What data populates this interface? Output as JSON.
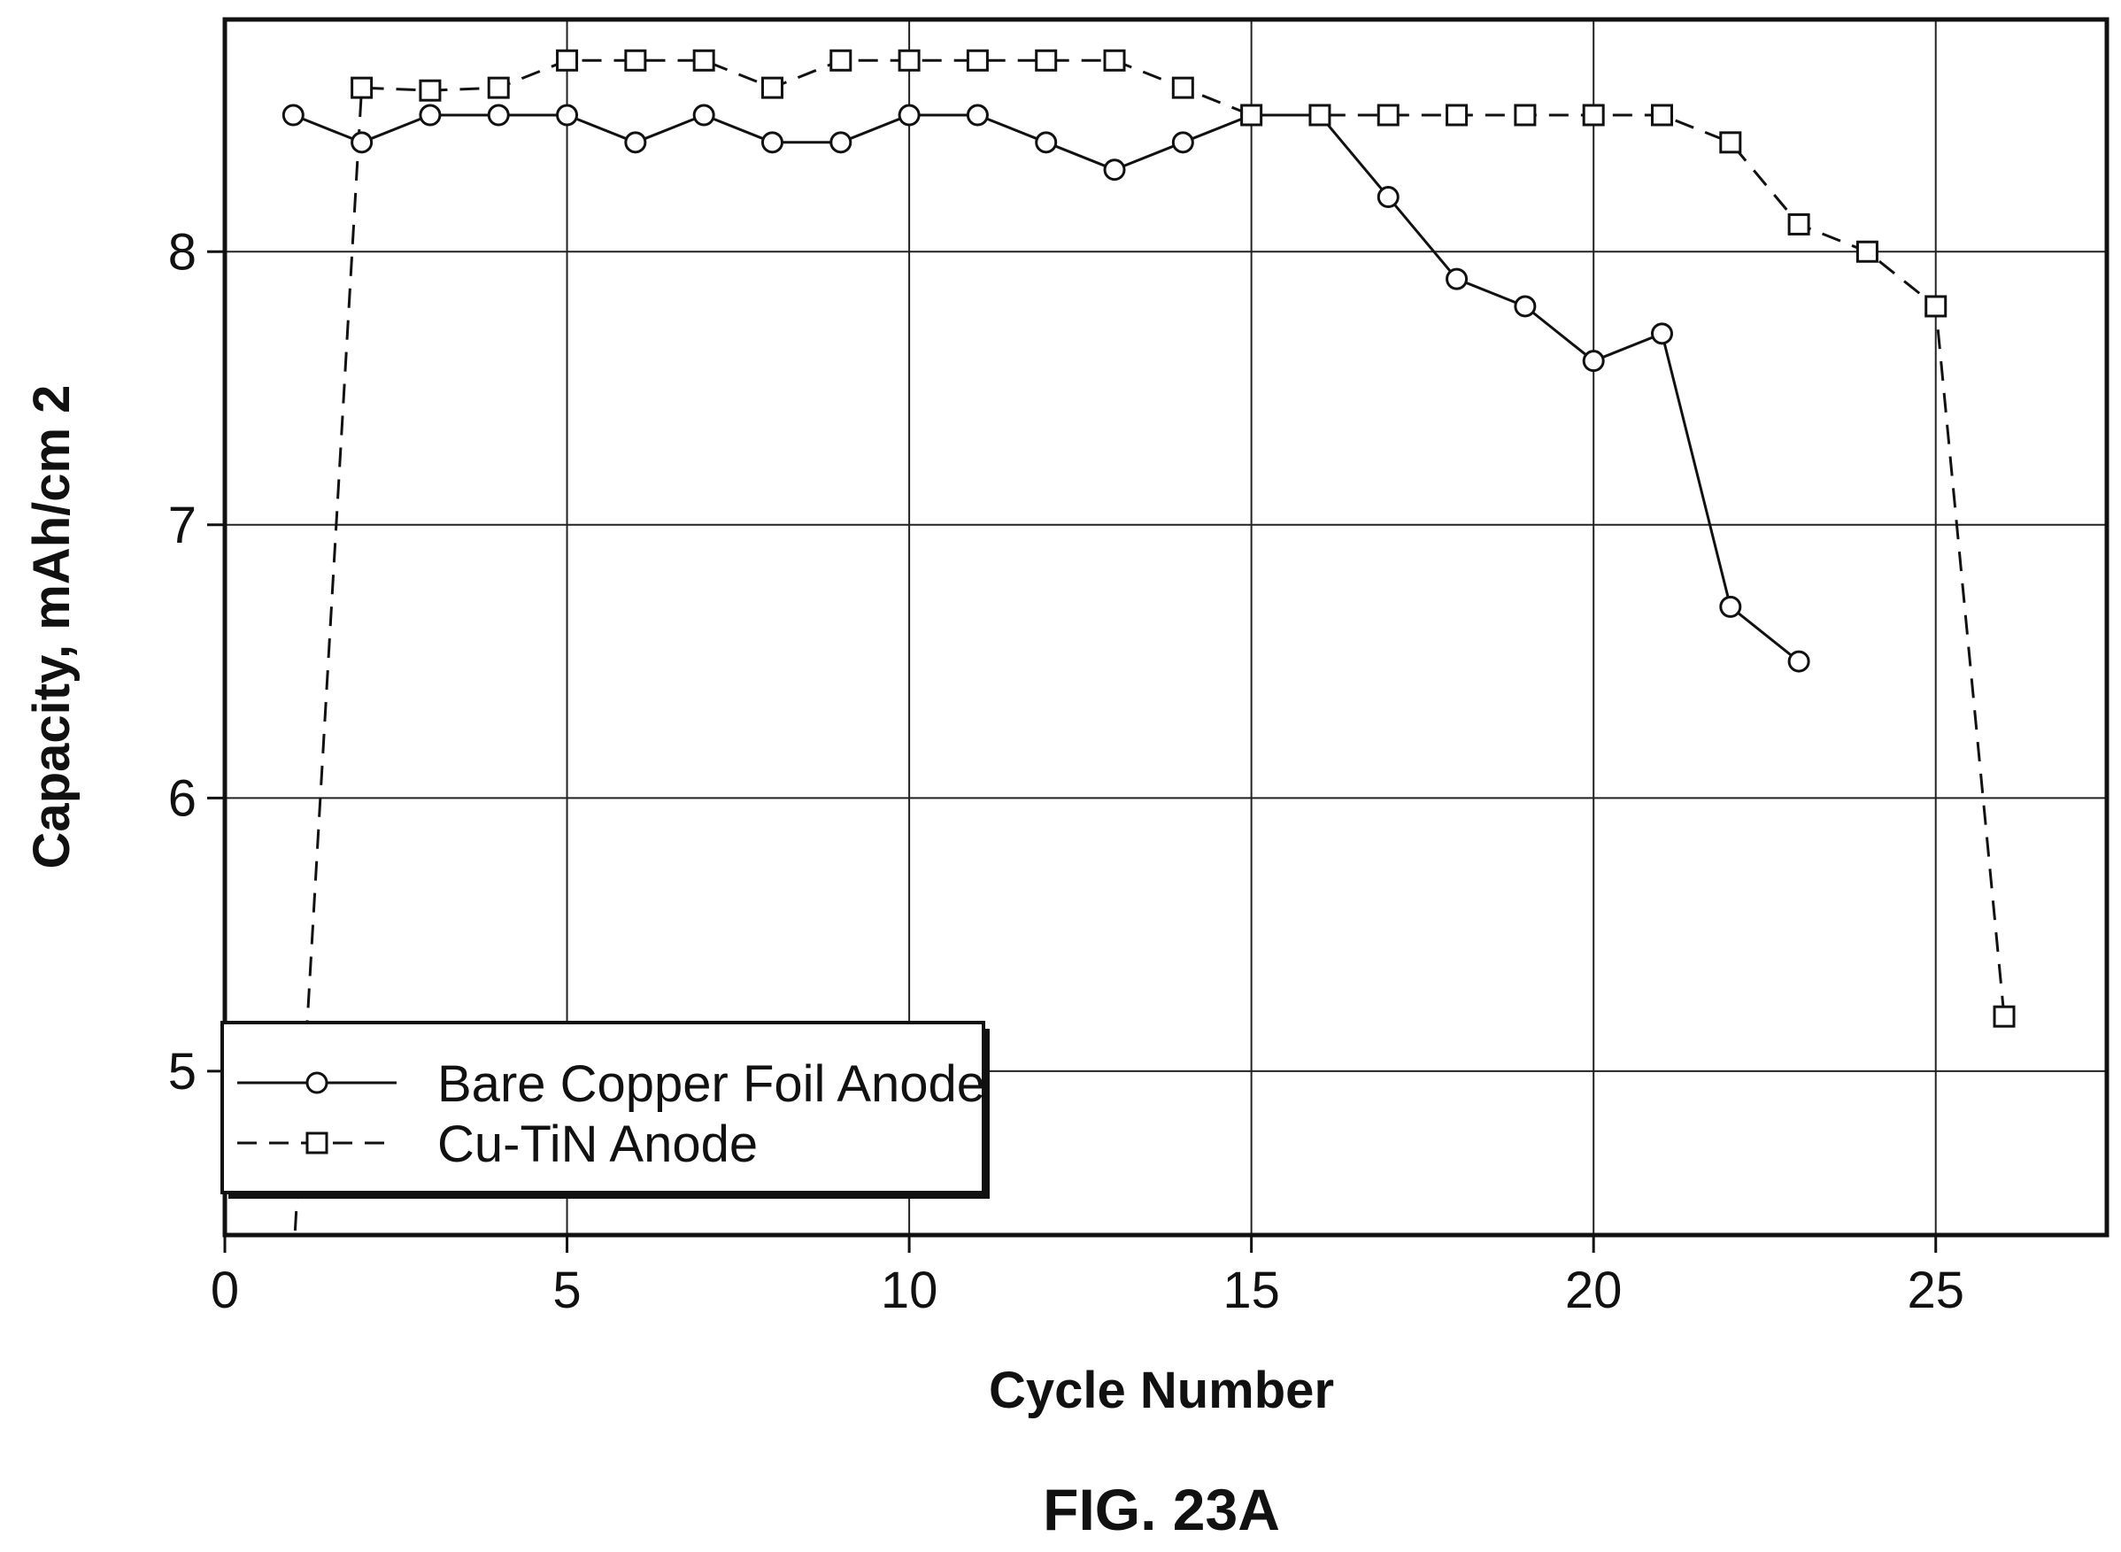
{
  "figure": {
    "caption": "FIG. 23A"
  },
  "chart_data": {
    "type": "line",
    "xlabel": "Cycle Number",
    "ylabel": "Capacity, mAh/cm 2",
    "xlim": [
      0,
      27.5
    ],
    "ylim": [
      4.4,
      8.85
    ],
    "xticks": [
      0,
      5,
      10,
      15,
      20,
      25
    ],
    "yticks": [
      5,
      6,
      7,
      8
    ],
    "grid": true,
    "legend_position": "bottom-left",
    "series": [
      {
        "name": "Bare Copper Foil Anode",
        "marker": "circle",
        "line": "solid",
        "x": [
          1,
          2,
          3,
          4,
          5,
          6,
          7,
          8,
          9,
          10,
          11,
          12,
          13,
          14,
          15,
          16,
          17,
          18,
          19,
          20,
          21,
          22,
          23
        ],
        "y": [
          8.5,
          8.4,
          8.5,
          8.5,
          8.5,
          8.4,
          8.5,
          8.4,
          8.4,
          8.5,
          8.5,
          8.4,
          8.3,
          8.4,
          8.5,
          8.5,
          8.2,
          7.9,
          7.8,
          7.6,
          7.7,
          6.7,
          6.5
        ]
      },
      {
        "name": "Cu-TiN Anode",
        "marker": "square",
        "line": "dashed",
        "x": [
          1,
          2,
          3,
          4,
          5,
          6,
          7,
          8,
          9,
          10,
          11,
          12,
          13,
          14,
          15,
          16,
          17,
          18,
          19,
          20,
          21,
          22,
          23,
          24,
          25,
          26
        ],
        "y": [
          4.3,
          8.6,
          8.59,
          8.6,
          8.7,
          8.7,
          8.7,
          8.6,
          8.7,
          8.7,
          8.7,
          8.7,
          8.7,
          8.6,
          8.5,
          8.5,
          8.5,
          8.5,
          8.5,
          8.5,
          8.5,
          8.4,
          8.1,
          8.0,
          7.8,
          5.2
        ]
      }
    ]
  }
}
